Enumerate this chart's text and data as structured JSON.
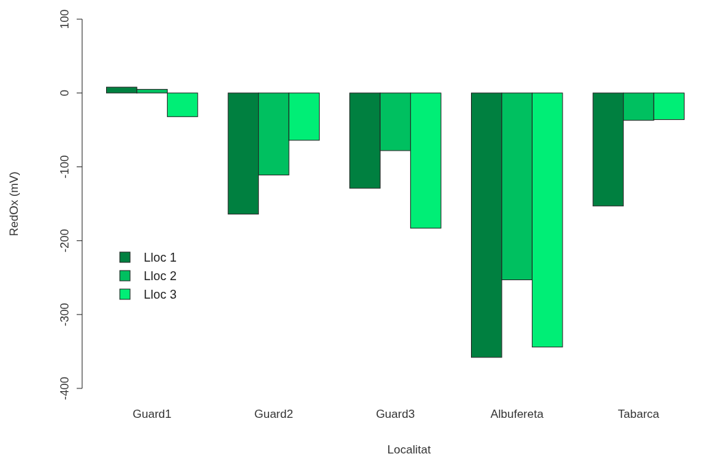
{
  "chart_data": {
    "type": "bar",
    "xlabel": "Localitat",
    "ylabel": "RedOx (mV)",
    "categories": [
      "Guard1",
      "Guard2",
      "Guard3",
      "Albufereta",
      "Tabarca"
    ],
    "series": [
      {
        "name": "Lloc 1",
        "color": "#008040",
        "values": [
          8,
          -164,
          -129,
          -358,
          -153
        ]
      },
      {
        "name": "Lloc 2",
        "color": "#00c060",
        "values": [
          5,
          -111,
          -78,
          -253,
          -37
        ]
      },
      {
        "name": "Lloc 3",
        "color": "#00ee76",
        "values": [
          -32,
          -64,
          -183,
          -344,
          -36
        ]
      }
    ],
    "ylim": [
      -400,
      100
    ],
    "yticks": [
      -400,
      -300,
      -200,
      -100,
      0,
      100
    ],
    "legend": "left",
    "grid": false
  }
}
